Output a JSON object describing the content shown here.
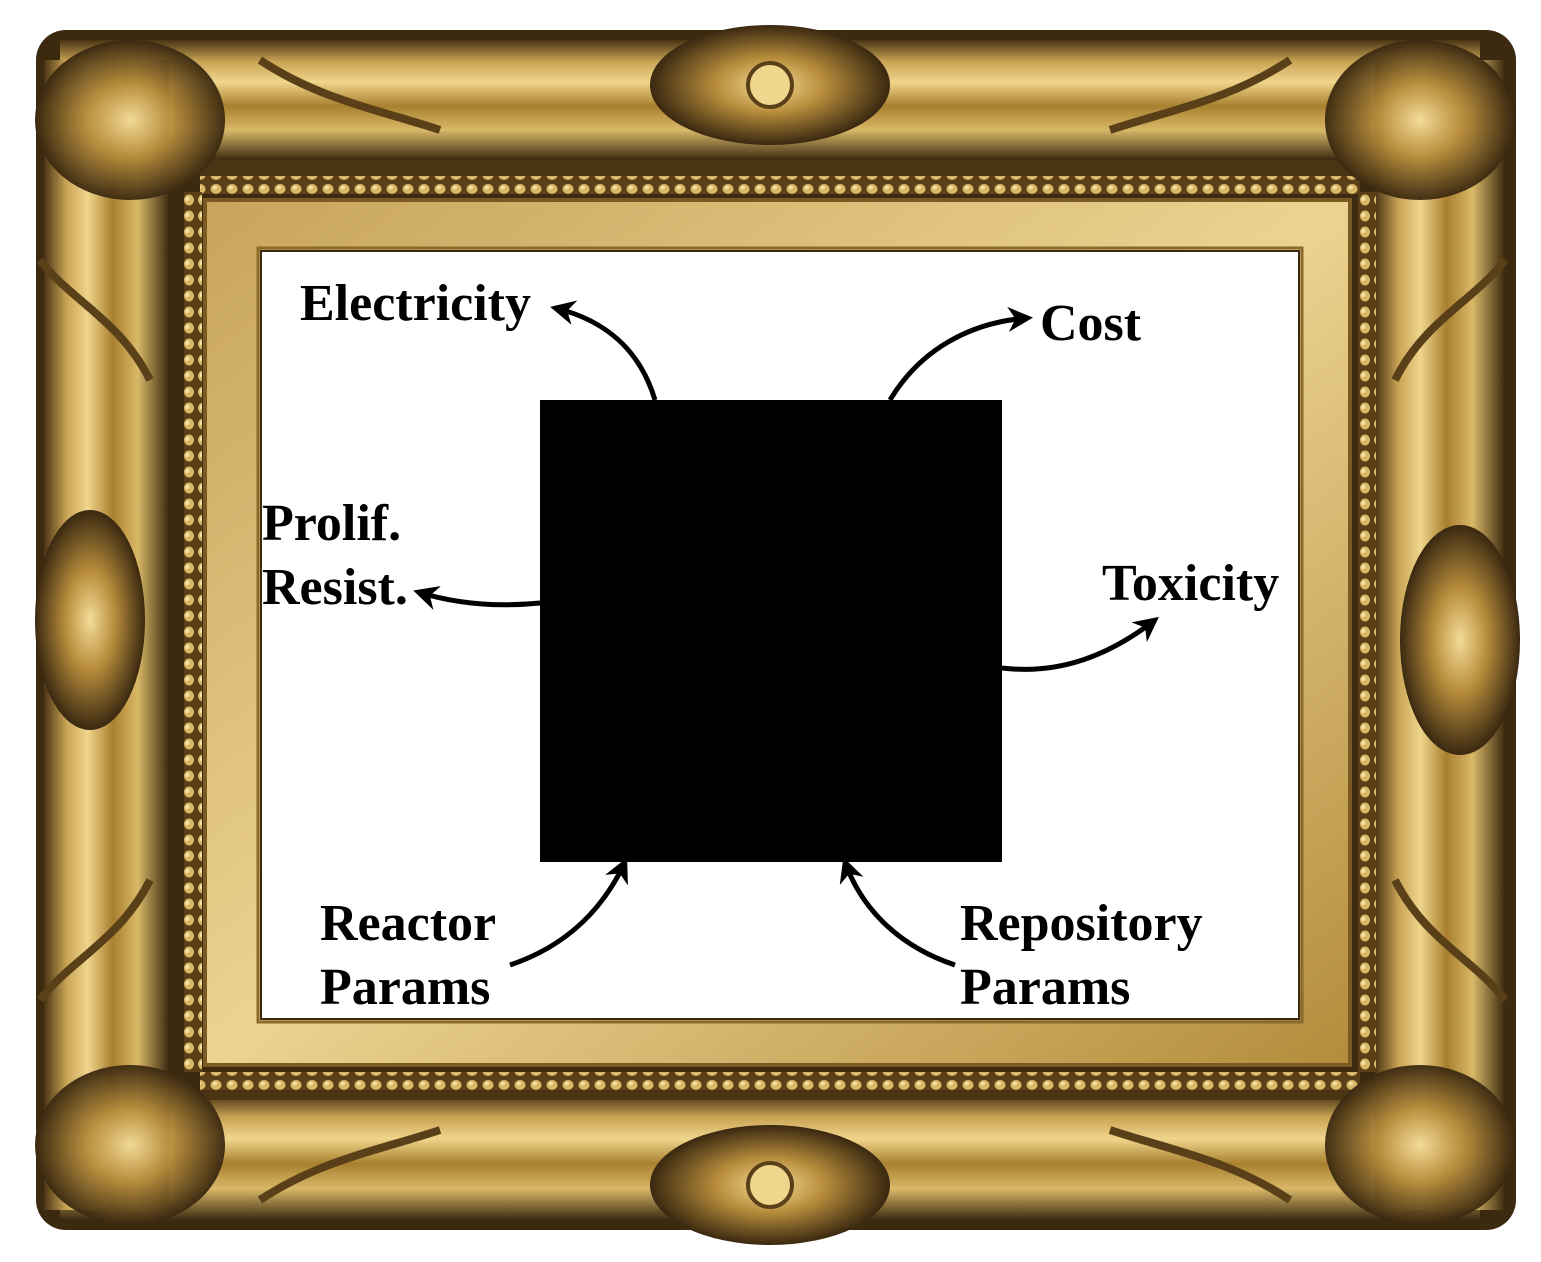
{
  "colors": {
    "frame_dark": "#3a2a12",
    "frame_mid": "#8a6a2a",
    "frame_light": "#d8b86a",
    "frame_highlight": "#f2dc9a",
    "canvas": "#ffffff",
    "black_box": "#000000",
    "arrow": "#000000",
    "text": "#000000"
  },
  "icons": {
    "frame": "ornate-gilded-picture-frame-icon",
    "black_box": "black-box-model"
  },
  "diagram": {
    "outputs": {
      "electricity": "Electricity",
      "cost": "Cost",
      "prolif_line1": "Prolif.",
      "prolif_line2": "Resist.",
      "toxicity": "Toxicity"
    },
    "inputs": {
      "reactor_line1": "Reactor",
      "reactor_line2": "Params",
      "repository_line1": "Repository",
      "repository_line2": "Params"
    }
  }
}
